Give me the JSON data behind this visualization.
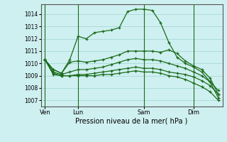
{
  "background_color": "#cff0f0",
  "grid_color": "#a8d8d8",
  "line_color": "#1a6b1a",
  "marker": "+",
  "xlabel": "Pression niveau de la mer( hPa )",
  "ylabel_vals": [
    1007,
    1008,
    1009,
    1010,
    1011,
    1012,
    1013,
    1014
  ],
  "ylim": [
    1006.5,
    1014.8
  ],
  "xtick_labels": [
    "Ven",
    "Lun",
    "Sam",
    "Dim"
  ],
  "xtick_positions": [
    0,
    4,
    12,
    18
  ],
  "vlines": [
    0,
    4,
    12,
    18
  ],
  "series": [
    [
      1010.3,
      1009.5,
      1009.2,
      1010.3,
      1012.2,
      1012.0,
      1012.5,
      1012.6,
      1012.7,
      1012.9,
      1014.2,
      1014.4,
      1014.4,
      1014.3,
      1013.3,
      1011.7,
      1010.5,
      1010.0,
      1009.7,
      1009.3,
      1008.5,
      1007.2
    ],
    [
      1010.3,
      1009.5,
      1009.2,
      1010.1,
      1010.2,
      1010.1,
      1010.2,
      1010.3,
      1010.5,
      1010.7,
      1011.0,
      1011.0,
      1011.0,
      1011.0,
      1010.9,
      1011.1,
      1010.8,
      1010.2,
      1009.8,
      1009.5,
      1008.8,
      1007.5
    ],
    [
      1010.3,
      1009.3,
      1009.1,
      1009.3,
      1009.5,
      1009.5,
      1009.6,
      1009.7,
      1009.9,
      1010.1,
      1010.3,
      1010.4,
      1010.3,
      1010.3,
      1010.2,
      1010.0,
      1009.8,
      1009.6,
      1009.3,
      1009.0,
      1008.5,
      1007.8
    ],
    [
      1010.3,
      1009.2,
      1009.0,
      1009.0,
      1009.1,
      1009.1,
      1009.2,
      1009.3,
      1009.4,
      1009.5,
      1009.6,
      1009.7,
      1009.6,
      1009.6,
      1009.5,
      1009.3,
      1009.2,
      1009.1,
      1008.9,
      1008.6,
      1008.2,
      1007.5
    ],
    [
      1010.3,
      1009.1,
      1009.0,
      1009.0,
      1009.0,
      1009.0,
      1009.0,
      1009.1,
      1009.1,
      1009.2,
      1009.3,
      1009.4,
      1009.3,
      1009.3,
      1009.2,
      1009.0,
      1008.9,
      1008.7,
      1008.4,
      1008.1,
      1007.7,
      1007.0
    ]
  ],
  "n_points": 22,
  "figsize": [
    3.2,
    2.0
  ],
  "dpi": 100
}
